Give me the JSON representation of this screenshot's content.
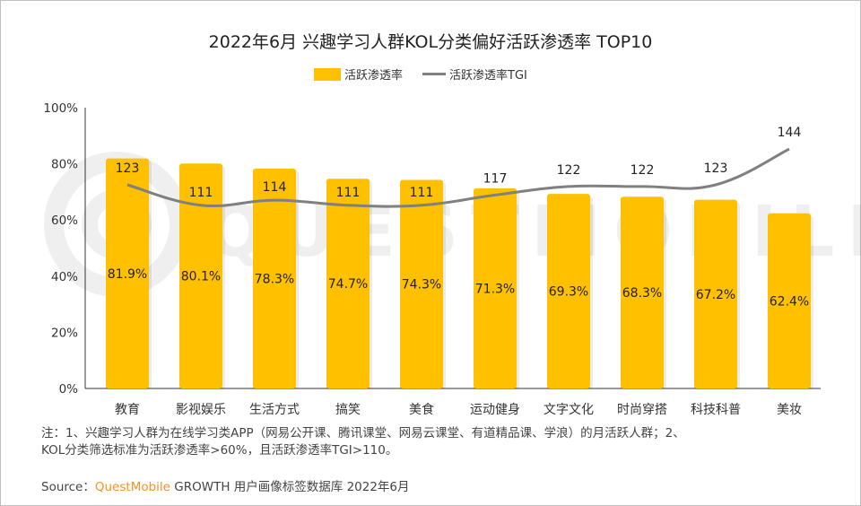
{
  "chart_data": {
    "type": "bar",
    "title": "2022年6月 兴趣学习人群KOL分类偏好活跃渗透率 TOP10",
    "categories": [
      "教育",
      "影视娱乐",
      "生活方式",
      "搞笑",
      "美食",
      "运动健身",
      "文字文化",
      "时尚穿搭",
      "科技科普",
      "美妆"
    ],
    "series": [
      {
        "name": "活跃渗透率",
        "type": "bar",
        "color": "#ffc000",
        "values": [
          81.9,
          80.1,
          78.3,
          74.7,
          74.3,
          71.3,
          69.3,
          68.3,
          67.2,
          62.4
        ],
        "labels": [
          "81.9%",
          "80.1%",
          "78.3%",
          "74.7%",
          "74.3%",
          "71.3%",
          "69.3%",
          "68.3%",
          "67.2%",
          "62.4%"
        ]
      },
      {
        "name": "活跃渗透率TGI",
        "type": "line",
        "color": "#808080",
        "values": [
          123,
          111,
          114,
          111,
          111,
          117,
          122,
          122,
          123,
          144
        ]
      }
    ],
    "yticks": [
      "0%",
      "20%",
      "40%",
      "60%",
      "80%",
      "100%"
    ],
    "ylim": [
      0,
      100
    ],
    "legend": "top",
    "grid": false
  },
  "note_line1": "注：1、兴趣学习人群为在线学习类APP（网易公开课、腾讯课堂、网易云课堂、有道精品课、学浪）的月活跃人群；2、",
  "note_line2": "KOL分类筛选标准为活跃渗透率>60%，且活跃渗透率TGI>110。",
  "source_label": "Source：",
  "source_brand": "QuestMobile",
  "source_rest": " GROWTH 用户画像标签数据库 2022年6月",
  "watermark": "QUESTMOBILE"
}
